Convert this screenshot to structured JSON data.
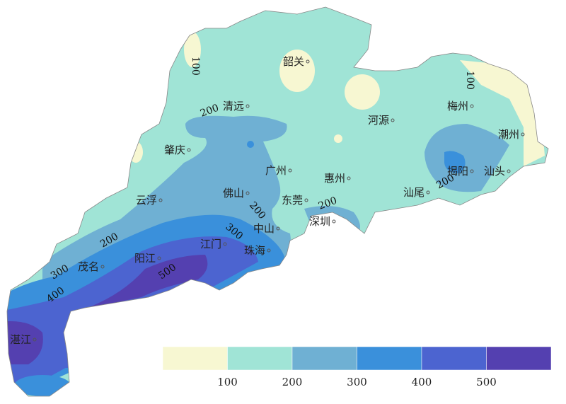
{
  "map": {
    "cities": [
      {
        "name": "韶关"
      },
      {
        "name": "清远"
      },
      {
        "name": "梅州"
      },
      {
        "name": "河源"
      },
      {
        "name": "潮州"
      },
      {
        "name": "肇庆"
      },
      {
        "name": "广州"
      },
      {
        "name": "揭阳"
      },
      {
        "name": "汕头"
      },
      {
        "name": "惠州"
      },
      {
        "name": "佛山"
      },
      {
        "name": "东莞"
      },
      {
        "name": "汕尾"
      },
      {
        "name": "云浮"
      },
      {
        "name": "深圳"
      },
      {
        "name": "中山"
      },
      {
        "name": "江门"
      },
      {
        "name": "珠海"
      },
      {
        "name": "茂名"
      },
      {
        "name": "阳江"
      },
      {
        "name": "湛江"
      }
    ],
    "contour_labels": [
      "100",
      "100",
      "200",
      "200",
      "200",
      "200",
      "200",
      "300",
      "300",
      "400",
      "500"
    ]
  },
  "legend": {
    "ticks": [
      "100",
      "200",
      "300",
      "400",
      "500"
    ],
    "colors": [
      "#f7f7d2",
      "#a0e4d6",
      "#6fb0d3",
      "#3a90db",
      "#4c64d0",
      "#5440b0"
    ]
  }
}
